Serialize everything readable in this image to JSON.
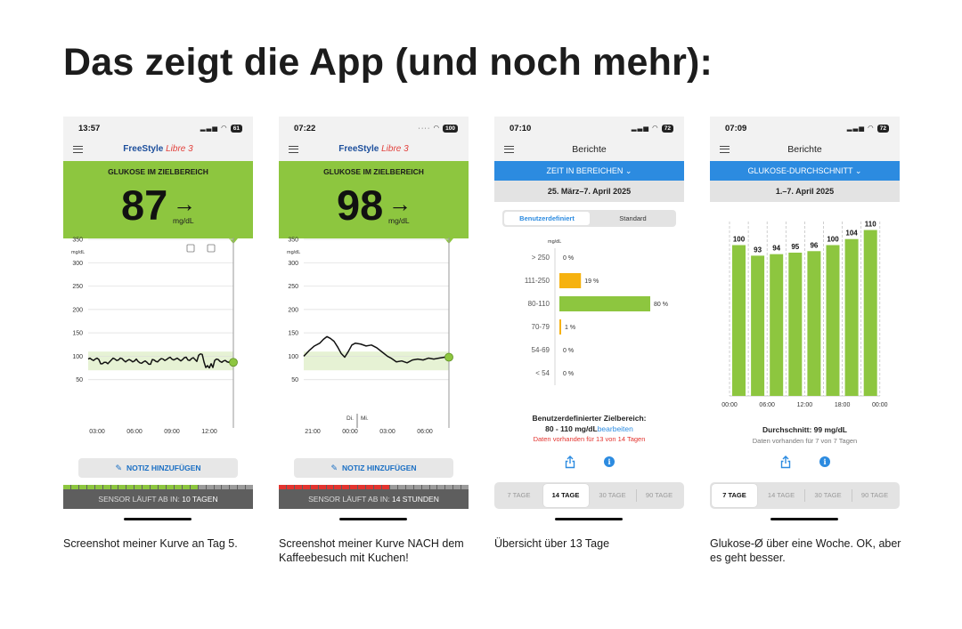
{
  "page": {
    "title": "Das zeigt die App (und noch mehr):"
  },
  "colors": {
    "green": "#8dc63f",
    "blue": "#2c8be0",
    "orange": "#f6b20f",
    "red": "#e3342f",
    "grey": "#5e5e5e"
  },
  "phones": [
    {
      "time": "13:57",
      "battery": "61",
      "logo": {
        "brand": "FreeStyle",
        "product": "Libre 3"
      },
      "banner": {
        "label": "GLUKOSE IM ZIELBEREICH",
        "value": "87",
        "arrow": "→",
        "unit": "mg/dL"
      },
      "chart": {
        "unit": "mg/dL",
        "y_ticks": [
          "350",
          "300",
          "250",
          "200",
          "150",
          "100",
          "50"
        ],
        "x_ticks": [
          "03:00",
          "06:00",
          "09:00",
          "12:00"
        ],
        "target_range": [
          70,
          110
        ]
      },
      "note_button": "NOTIZ HINZUFÜGEN",
      "sensor": {
        "label": "SENSOR LÄUFT AB IN:",
        "value": "10 TAGEN"
      },
      "caption": "Screenshot meiner Kurve an Tag 5."
    },
    {
      "time": "07:22",
      "battery": "100",
      "logo": {
        "brand": "FreeStyle",
        "product": "Libre 3"
      },
      "banner": {
        "label": "GLUKOSE IM ZIELBEREICH",
        "value": "98",
        "arrow": "→",
        "unit": "mg/dL"
      },
      "chart": {
        "unit": "mg/dL",
        "y_ticks": [
          "350",
          "300",
          "250",
          "200",
          "150",
          "100",
          "50"
        ],
        "x_ticks": [
          "21:00",
          "00:00",
          "03:00",
          "06:00"
        ],
        "day_labels": [
          "Di.",
          "Mi."
        ],
        "target_range": [
          70,
          110
        ]
      },
      "note_button": "NOTIZ HINZUFÜGEN",
      "sensor": {
        "label": "SENSOR LÄUFT AB IN:",
        "value": "14 STUNDEN"
      },
      "caption": "Screenshot meiner Kurve NACH dem Kaffeebesuch mit Kuchen!"
    },
    {
      "time": "07:10",
      "battery": "72",
      "title": "Berichte",
      "report_selector": "ZEIT IN BEREICHEN",
      "date_range": "25. März–7. April 2025",
      "segments": [
        "Benutzerdefiniert",
        "Standard"
      ],
      "unit": "mg/dL",
      "summary": {
        "title": "Benutzerdefinierter Zielbereich:",
        "range": "80 - 110 mg/dL",
        "edit": "bearbeiten",
        "availability": "Daten vorhanden für 13 von 14 Tagen"
      },
      "periods": [
        "7 TAGE",
        "14 TAGE",
        "30 TAGE",
        "90 TAGE"
      ],
      "active_period": 1,
      "caption": "Übersicht über 13 Tage"
    },
    {
      "time": "07:09",
      "battery": "72",
      "title": "Berichte",
      "report_selector": "GLUKOSE-DURCHSCHNITT",
      "date_range": "1.–7. April 2025",
      "summary": {
        "average": "Durchschnitt: 99 mg/dL",
        "availability": "Daten vorhanden für 7 von 7 Tagen"
      },
      "periods": [
        "7 TAGE",
        "14 TAGE",
        "30 TAGE",
        "90 TAGE"
      ],
      "active_period": 0,
      "caption": "Glukose-Ø über eine Woche. OK, aber es geht besser."
    }
  ],
  "chart_data": [
    {
      "type": "bar",
      "orientation": "horizontal",
      "categories": [
        "> 250",
        "111-250",
        "80-110",
        "70-79",
        "54-69",
        "< 54"
      ],
      "values": [
        0,
        19,
        80,
        1,
        0,
        0
      ],
      "value_labels": [
        "0 %",
        "19 %",
        "80 %",
        "1 %",
        "0 %",
        "0 %"
      ],
      "colors": [
        "#f6b20f",
        "#f6b20f",
        "#8dc63f",
        "#f6b20f",
        "#e3342f",
        "#e3342f"
      ],
      "ylabel": "mg/dL"
    },
    {
      "type": "bar",
      "values": [
        100,
        93,
        94,
        95,
        96,
        100,
        104,
        110
      ],
      "x_ticks": [
        "00:00",
        "06:00",
        "12:00",
        "18:00",
        "00:00"
      ]
    }
  ]
}
